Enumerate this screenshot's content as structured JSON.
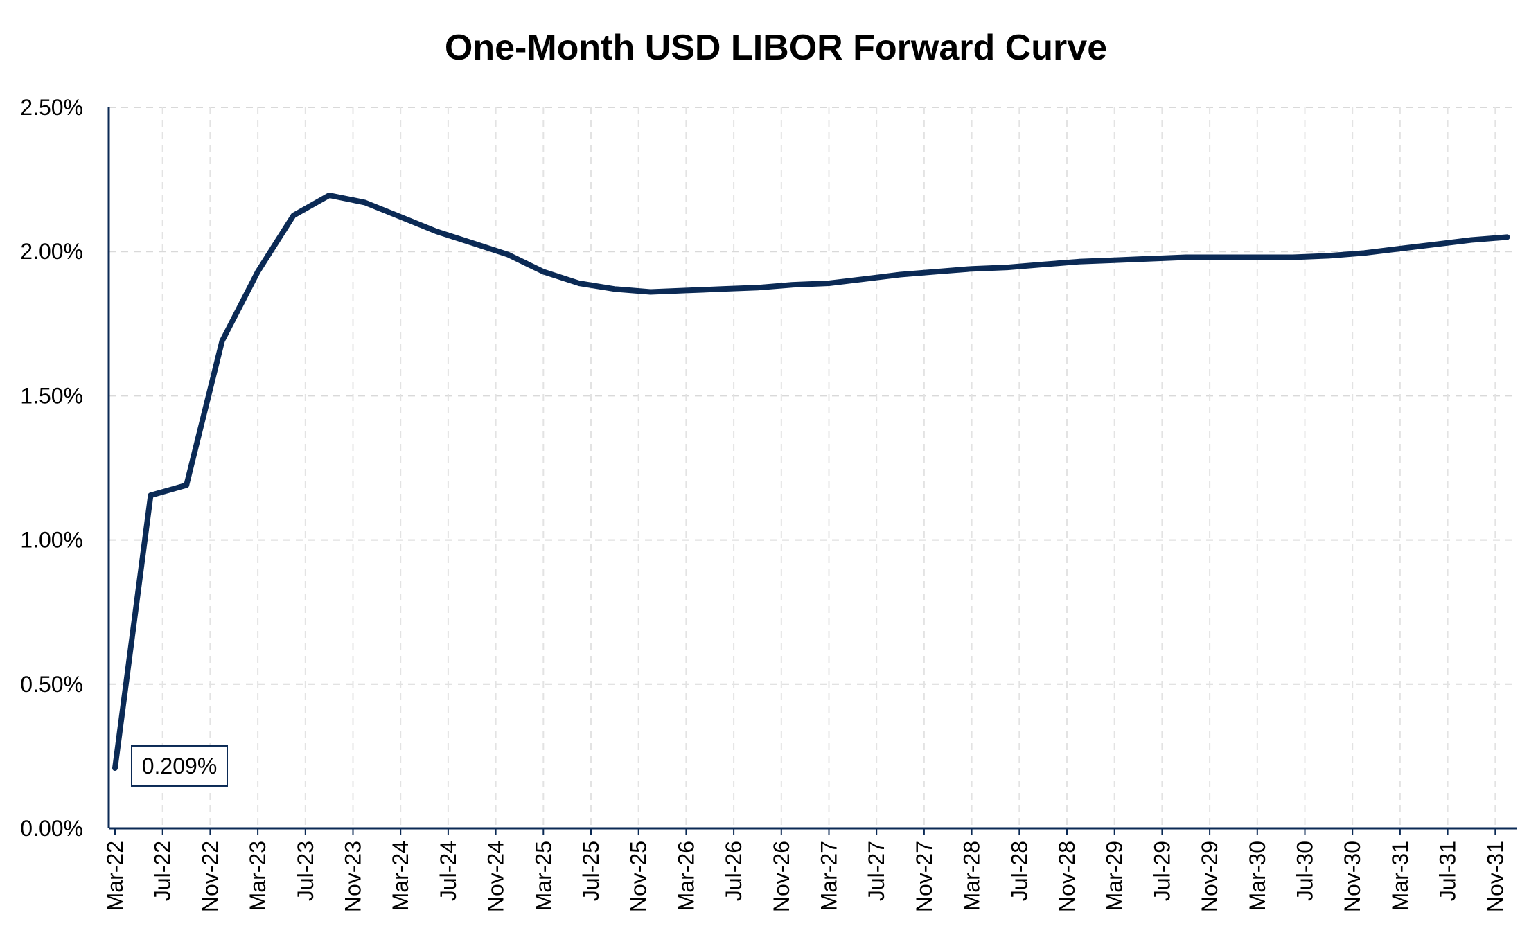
{
  "chart_data": {
    "type": "line",
    "title": "One-Month USD LIBOR Forward Curve",
    "xlabel": "",
    "ylabel": "",
    "ylim": [
      0,
      0.025
    ],
    "yticks": [
      "0.00%",
      "0.50%",
      "1.00%",
      "1.50%",
      "2.00%",
      "2.50%"
    ],
    "yticks_values": [
      0,
      0.005,
      0.01,
      0.015,
      0.02,
      0.025
    ],
    "xticks": [
      "Mar-22",
      "Jul-22",
      "Nov-22",
      "Mar-23",
      "Jul-23",
      "Nov-23",
      "Mar-24",
      "Jul-24",
      "Nov-24",
      "Mar-25",
      "Jul-25",
      "Nov-25",
      "Mar-26",
      "Jul-26",
      "Nov-26",
      "Mar-27",
      "Jul-27",
      "Nov-27",
      "Mar-28",
      "Jul-28",
      "Nov-28",
      "Mar-29",
      "Jul-29",
      "Nov-29",
      "Mar-30",
      "Jul-30",
      "Nov-30",
      "Mar-31",
      "Jul-31",
      "Nov-31"
    ],
    "grid": true,
    "legend": "none",
    "series": [
      {
        "color": "#0b2a55",
        "points": [
          {
            "x": "Mar-22",
            "y": 0.00209
          },
          {
            "x": "Jun-22",
            "y": 0.01155
          },
          {
            "x": "Sep-22",
            "y": 0.0119
          },
          {
            "x": "Dec-22",
            "y": 0.0169
          },
          {
            "x": "Mar-23",
            "y": 0.0193
          },
          {
            "x": "Jun-23",
            "y": 0.02125
          },
          {
            "x": "Sep-23",
            "y": 0.02195
          },
          {
            "x": "Dec-23",
            "y": 0.0217
          },
          {
            "x": "Mar-24",
            "y": 0.0212
          },
          {
            "x": "Jun-24",
            "y": 0.0207
          },
          {
            "x": "Sep-24",
            "y": 0.0203
          },
          {
            "x": "Dec-24",
            "y": 0.0199
          },
          {
            "x": "Mar-25",
            "y": 0.0193
          },
          {
            "x": "Jun-25",
            "y": 0.0189
          },
          {
            "x": "Sep-25",
            "y": 0.0187
          },
          {
            "x": "Dec-25",
            "y": 0.0186
          },
          {
            "x": "Mar-26",
            "y": 0.01865
          },
          {
            "x": "Jun-26",
            "y": 0.0187
          },
          {
            "x": "Sep-26",
            "y": 0.01875
          },
          {
            "x": "Dec-26",
            "y": 0.01885
          },
          {
            "x": "Mar-27",
            "y": 0.0189
          },
          {
            "x": "Jun-27",
            "y": 0.01905
          },
          {
            "x": "Sep-27",
            "y": 0.0192
          },
          {
            "x": "Dec-27",
            "y": 0.0193
          },
          {
            "x": "Mar-28",
            "y": 0.0194
          },
          {
            "x": "Jun-28",
            "y": 0.01945
          },
          {
            "x": "Sep-28",
            "y": 0.01955
          },
          {
            "x": "Dec-28",
            "y": 0.01965
          },
          {
            "x": "Mar-29",
            "y": 0.0197
          },
          {
            "x": "Jun-29",
            "y": 0.01975
          },
          {
            "x": "Sep-29",
            "y": 0.0198
          },
          {
            "x": "Dec-29",
            "y": 0.0198
          },
          {
            "x": "Mar-30",
            "y": 0.0198
          },
          {
            "x": "Jun-30",
            "y": 0.0198
          },
          {
            "x": "Sep-30",
            "y": 0.01985
          },
          {
            "x": "Dec-30",
            "y": 0.01995
          },
          {
            "x": "Mar-31",
            "y": 0.0201
          },
          {
            "x": "Jun-31",
            "y": 0.02025
          },
          {
            "x": "Sep-31",
            "y": 0.0204
          },
          {
            "x": "Dec-31",
            "y": 0.0205
          }
        ]
      }
    ],
    "annotations": [
      {
        "text": "0.209%",
        "x": "Mar-22",
        "y": 0.00209
      }
    ]
  }
}
